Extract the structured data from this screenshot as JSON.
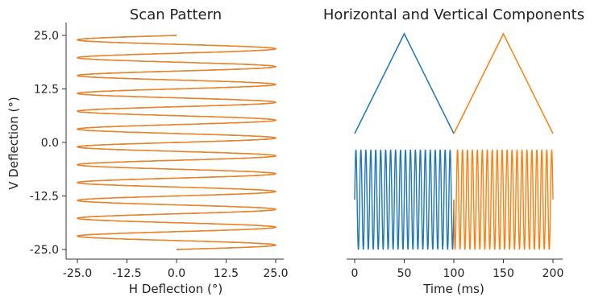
{
  "chart_data": [
    {
      "type": "line",
      "title": "Scan Pattern",
      "xlabel": "H Deflection (°)",
      "ylabel": "V Deflection (°)",
      "xlim": [
        -25,
        25
      ],
      "ylim": [
        -25,
        25
      ],
      "xticks": [
        "-25.0",
        "-12.5",
        "0.0",
        "12.5",
        "25.0"
      ],
      "yticks": [
        "-25.0",
        "-12.5",
        "0.0",
        "12.5",
        "25.0"
      ],
      "grid": false,
      "series": [
        {
          "color": "#1f77b4",
          "h_amplitude": 25,
          "v_amplitude": 25,
          "v_direction": "up",
          "cycles": 12
        },
        {
          "color": "#ff7f0e",
          "h_amplitude": 25,
          "v_amplitude": 25,
          "v_direction": "down",
          "cycles": 12
        }
      ]
    },
    {
      "type": "line",
      "title": "Horizontal and Vertical Components",
      "xlabel": "Time (ms)",
      "ylabel": "",
      "xlim": [
        0,
        200
      ],
      "xticks": [
        "0",
        "50",
        "100",
        "150",
        "200"
      ],
      "grid": false,
      "series": [
        {
          "color": "#1f77b4",
          "component": "vertical",
          "t": [
            0,
            50,
            100
          ],
          "v": [
            -25,
            25,
            -25
          ]
        },
        {
          "color": "#ff7f0e",
          "component": "vertical",
          "t": [
            100,
            150,
            200
          ],
          "v": [
            -25,
            25,
            -25
          ]
        },
        {
          "color": "#1f77b4",
          "component": "horizontal",
          "t_range": [
            0,
            100
          ],
          "amplitude": 25,
          "cycles": 20
        },
        {
          "color": "#ff7f0e",
          "component": "horizontal",
          "t_range": [
            100,
            200
          ],
          "amplitude": 25,
          "cycles": 20
        }
      ]
    }
  ]
}
